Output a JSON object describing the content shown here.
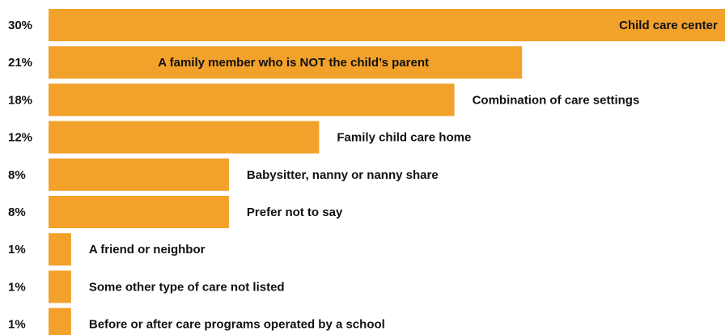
{
  "chart_data": {
    "type": "bar",
    "orientation": "horizontal",
    "categories": [
      "Child care center",
      "A family member who is NOT the child’s parent",
      "Combination of care settings",
      "Family child care home",
      "Babysitter, nanny or nanny share",
      "Prefer not to say",
      "A friend or neighbor",
      "Some other type of care not listed",
      "Before or after care programs operated by a school"
    ],
    "values": [
      30,
      21,
      18,
      12,
      8,
      8,
      1,
      1,
      1
    ],
    "value_labels": [
      "30%",
      "21%",
      "18%",
      "12%",
      "8%",
      "8%",
      "1%",
      "1%",
      "1%"
    ],
    "xlim": [
      0,
      30
    ],
    "grid": false,
    "legend": "none",
    "bar_color": "#f2a12b"
  }
}
